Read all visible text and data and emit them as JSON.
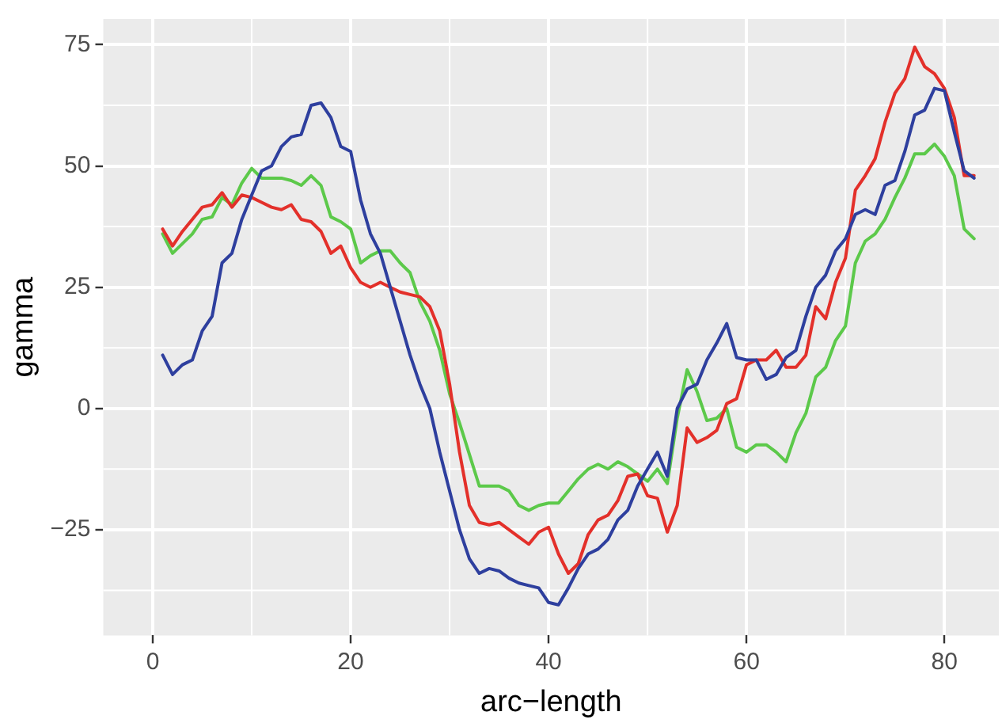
{
  "chart_data": {
    "type": "line",
    "xlabel": "arc−length",
    "ylabel": "gamma",
    "grid": true,
    "legend": false,
    "marker": "none",
    "line_style": "solid",
    "x": [
      1,
      2,
      3,
      4,
      5,
      6,
      7,
      8,
      9,
      10,
      11,
      12,
      13,
      14,
      15,
      16,
      17,
      18,
      19,
      20,
      21,
      22,
      23,
      24,
      25,
      26,
      27,
      28,
      29,
      30,
      31,
      32,
      33,
      34,
      35,
      36,
      37,
      38,
      39,
      40,
      41,
      42,
      43,
      44,
      45,
      46,
      47,
      48,
      49,
      50,
      51,
      52,
      53,
      54,
      55,
      56,
      57,
      58,
      59,
      60,
      61,
      62,
      63,
      64,
      65,
      66,
      67,
      68,
      69,
      70,
      71,
      72,
      73,
      74,
      75,
      76,
      77,
      78,
      79,
      80,
      81,
      82,
      83
    ],
    "xlim": [
      -5,
      85.5
    ],
    "xticks": [
      0,
      20,
      40,
      60,
      80
    ],
    "ylim": [
      -46.8,
      80.3
    ],
    "yticks": [
      {
        "value": -25,
        "label": "−25"
      },
      0,
      25,
      50,
      75
    ],
    "series": [
      {
        "color": "#2e3f9e",
        "values": [
          11,
          7,
          9,
          10,
          16,
          19,
          30,
          32,
          39,
          44,
          49,
          50,
          54,
          56,
          56.5,
          62.5,
          63,
          60,
          54,
          53,
          43,
          36,
          32,
          25,
          18,
          11,
          5,
          0,
          -9,
          -17,
          -25,
          -31,
          -34,
          -33,
          -33.5,
          -35,
          -36,
          -36.5,
          -37,
          -40,
          -40.5,
          -37,
          -33,
          -30,
          -29,
          -27,
          -23,
          -21,
          -16,
          -12.5,
          -9,
          -14,
          0,
          4,
          5,
          10,
          13.5,
          17.5,
          10.5,
          10,
          10,
          6,
          7,
          10.5,
          12,
          19,
          25,
          27.5,
          32.5,
          35,
          40,
          41,
          40,
          46,
          47,
          53,
          60.5,
          61.5,
          66,
          65.5,
          57,
          49,
          47.5
        ]
      },
      {
        "color": "#e3302a",
        "values": [
          37,
          33.5,
          36.5,
          39,
          41.5,
          42,
          44.5,
          41.5,
          44,
          43.5,
          42.5,
          41.5,
          41,
          42,
          39,
          38.5,
          36.5,
          32,
          33.5,
          29,
          26,
          25,
          26,
          25,
          24,
          23.5,
          23,
          21,
          16,
          5,
          -9,
          -20,
          -23.5,
          -24,
          -23.5,
          -25,
          -26.5,
          -28,
          -25.5,
          -24.5,
          -30,
          -34,
          -32,
          -26,
          -23,
          -22,
          -19,
          -14,
          -13.5,
          -18,
          -18.5,
          -25.5,
          -20,
          -4,
          -7,
          -6,
          -4.5,
          1,
          2,
          9,
          10,
          10,
          12,
          8.5,
          8.5,
          11,
          21,
          18.5,
          26,
          31,
          45,
          48,
          51.5,
          59,
          65,
          68,
          74.5,
          70.5,
          69,
          66,
          60,
          48,
          48
        ]
      },
      {
        "color": "#5cc94a",
        "values": [
          36,
          32,
          34,
          36,
          39,
          39.5,
          43.5,
          42,
          46.5,
          49.5,
          47.5,
          47.5,
          47.5,
          47,
          46,
          48,
          46,
          39.5,
          38.5,
          37,
          30,
          31.5,
          32.5,
          32.5,
          30,
          28,
          22,
          18,
          12,
          3,
          -3,
          -9.5,
          -16,
          -16,
          -16,
          -17,
          -20,
          -21,
          -20,
          -19.5,
          -19.5,
          -17,
          -14.5,
          -12.5,
          -11.5,
          -12.5,
          -11,
          -12,
          -13.5,
          -15,
          -12.5,
          -15.5,
          -2,
          8,
          3.5,
          -2.5,
          -2,
          0,
          -8,
          -9,
          -7.5,
          -7.5,
          -9,
          -11,
          -5,
          -1,
          6.5,
          8.5,
          14,
          17,
          30,
          34.5,
          36,
          39,
          43.5,
          47.5,
          52.5,
          52.5,
          54.5,
          52,
          48,
          37,
          35
        ]
      }
    ]
  }
}
